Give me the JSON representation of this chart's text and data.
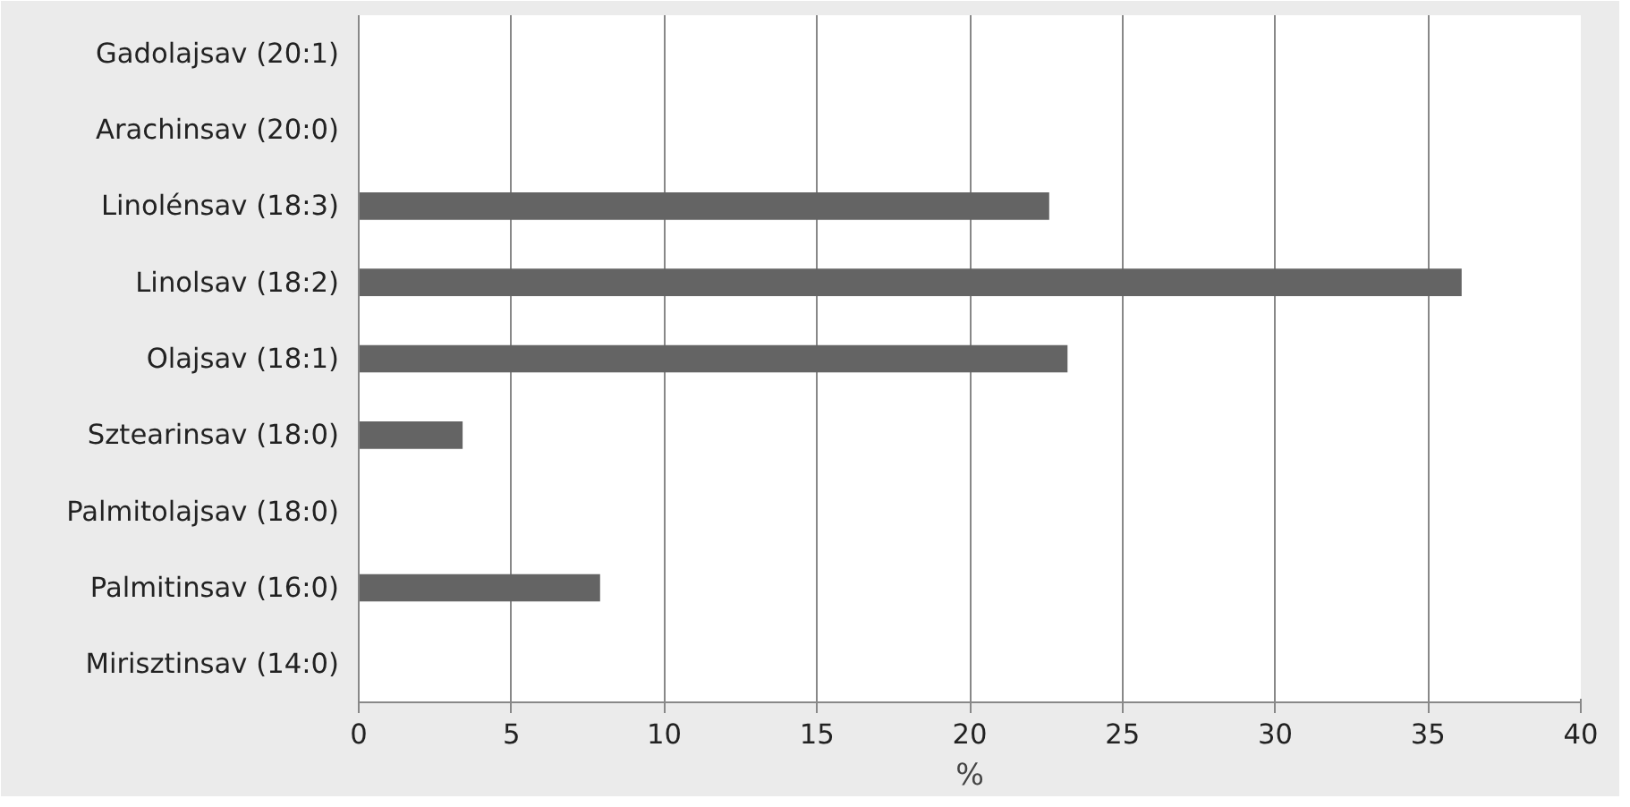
{
  "chart_data": {
    "type": "bar",
    "orientation": "horizontal",
    "xlabel": "%",
    "categories": [
      "Gadolajsav (20:1)",
      "Arachinsav (20:0)",
      "Linolénsav (18:3)",
      "Linolsav (18:2)",
      "Olajsav (18:1)",
      "Sztearinsav (18:0)",
      "Palmitolajsav (18:0)",
      "Palmitinsav (16:0)",
      "Mirisztinsav (14:0)"
    ],
    "values": [
      0,
      0,
      22.6,
      36.1,
      23.2,
      3.4,
      0,
      7.9,
      0
    ],
    "color": "#646464",
    "xlim": [
      0,
      40
    ],
    "xticks": [
      0,
      5,
      10,
      15,
      20,
      25,
      30,
      35,
      40
    ],
    "grid": "x"
  }
}
